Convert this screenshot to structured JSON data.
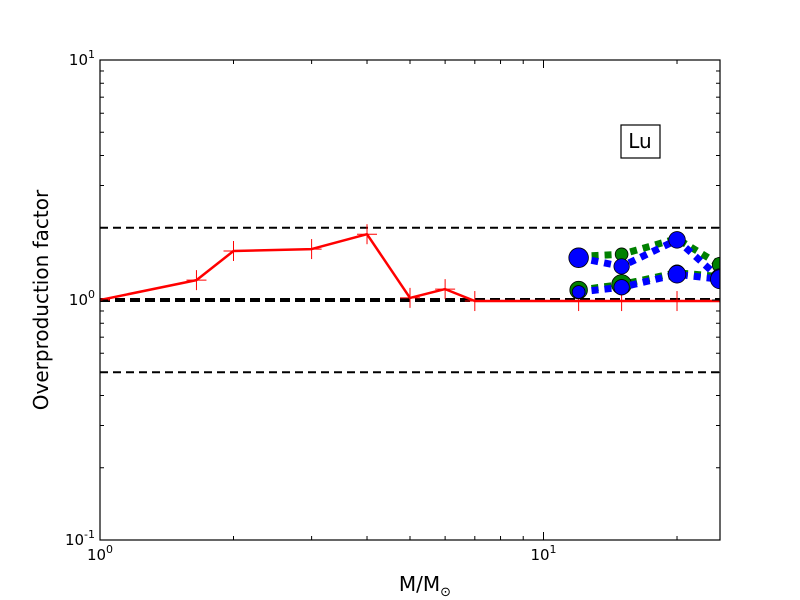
{
  "chart_data": {
    "type": "line",
    "xlabel_main": "M/M",
    "xlabel_sub": "⊙",
    "ylabel": "Overproduction factor",
    "annotation": "Lu",
    "xscale": "log",
    "yscale": "log",
    "xlim": [
      1,
      25
    ],
    "ylim": [
      0.1,
      10
    ],
    "xticks": [
      {
        "value": 1,
        "base": "10",
        "exp": "0"
      },
      {
        "value": 10,
        "base": "10",
        "exp": "1"
      }
    ],
    "yticks": [
      {
        "value": 0.1,
        "base": "10",
        "exp": "-1"
      },
      {
        "value": 1,
        "base": "10",
        "exp": "0"
      },
      {
        "value": 10,
        "base": "10",
        "exp": "1"
      }
    ],
    "reference_lines": [
      {
        "y": 2.0,
        "style": "dashed",
        "width": "thin"
      },
      {
        "y": 1.0,
        "style": "dashed",
        "width": "thick"
      },
      {
        "y": 0.5,
        "style": "dashed",
        "width": "thin"
      }
    ],
    "series": [
      {
        "color": "#ff0000",
        "style": "solid",
        "marker": "plus",
        "x": [
          1.0,
          1.65,
          2.0,
          3.0,
          4.0,
          5.0,
          6.0,
          7.0,
          12.0,
          15.0,
          20.0,
          25.0
        ],
        "y": [
          1.0,
          1.21,
          1.6,
          1.63,
          1.88,
          1.02,
          1.11,
          0.99,
          0.99,
          0.99,
          0.99,
          0.99
        ]
      },
      {
        "color": "#008000",
        "style": "dotted",
        "marker": "circle",
        "x": [
          12,
          15,
          20,
          25
        ],
        "y": [
          1.52,
          1.55,
          1.8,
          1.4
        ]
      },
      {
        "color": "#008000",
        "style": "dotted",
        "marker": "circle",
        "x": [
          12,
          15,
          20,
          25
        ],
        "y": [
          1.1,
          1.16,
          1.3,
          1.25
        ]
      },
      {
        "color": "#0000ff",
        "style": "dotted",
        "marker": "circle",
        "x": [
          12,
          15,
          20,
          25
        ],
        "y": [
          1.5,
          1.38,
          1.78,
          1.23
        ]
      },
      {
        "color": "#0000ff",
        "style": "dotted",
        "marker": "circle",
        "x": [
          12,
          15,
          20,
          25
        ],
        "y": [
          1.08,
          1.13,
          1.28,
          1.22
        ]
      }
    ]
  }
}
